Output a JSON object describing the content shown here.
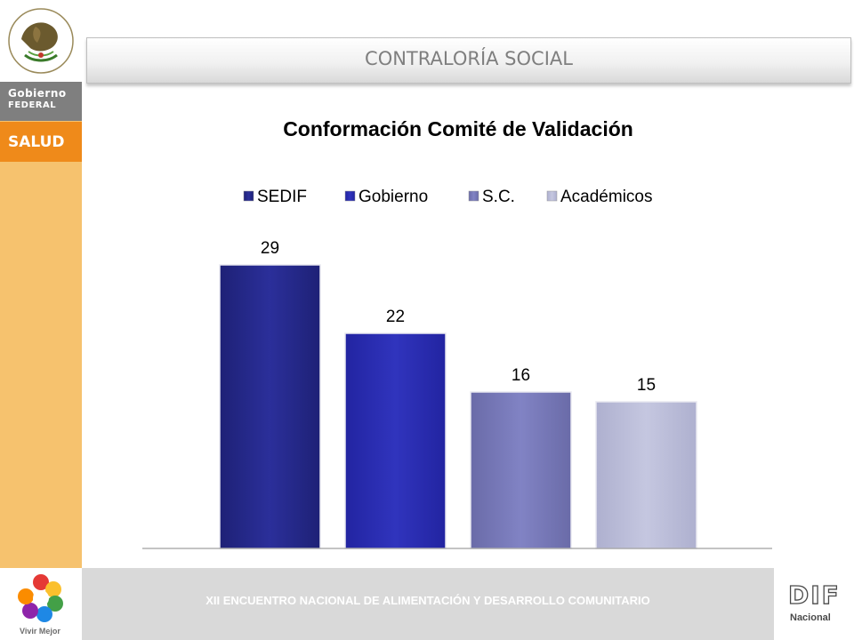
{
  "sidebar": {
    "seal_text": "ESTADOS UNIDOS MEXICANOS",
    "gobierno_line1": "Gobierno",
    "gobierno_line2": "FEDERAL",
    "salud": "SALUD"
  },
  "header": {
    "title": "CONTRALORÍA SOCIAL"
  },
  "footer": {
    "event": "XII ENCUENTRO NACIONAL DE ALIMENTACIÓN Y DESARROLLO COMUNITARIO",
    "vivir": "Vivir Mejor",
    "dif": "DIF",
    "dif_sub": "Nacional"
  },
  "colors": {
    "sidebar": "#f6c26e",
    "salud": "#ef8a1a",
    "gobierno": "#7f7f7f",
    "footer": "#d9d9d9"
  },
  "chart_data": {
    "type": "bar",
    "title": "Conformación Comité de Validación",
    "legend_position": "top",
    "grid": false,
    "ylim": [
      0,
      30
    ],
    "series": [
      {
        "name": "SEDIF",
        "value": 29,
        "color": "#1e2176",
        "color_light": "#2b2f9a"
      },
      {
        "name": "Gobierno",
        "value": 22,
        "color": "#2224a1",
        "color_light": "#3034bd"
      },
      {
        "name": "S.C.",
        "value": 16,
        "color": "#6a6ba8",
        "color_light": "#8183c4"
      },
      {
        "name": "Académicos",
        "value": 15,
        "color": "#aeb0cf",
        "color_light": "#c5c7e0"
      }
    ]
  }
}
